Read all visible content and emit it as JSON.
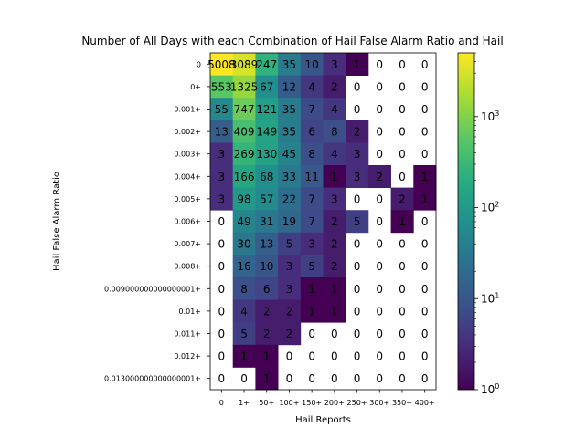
{
  "chart_data": {
    "type": "heatmap",
    "title": "Number of All Days with each Combination of Hail False Alarm Ratio and Hail",
    "xlabel": "Hail Reports",
    "ylabel": "Hail False Alarm Ratio",
    "x_categories": [
      "0",
      "1+",
      "50+",
      "100+",
      "150+",
      "200+",
      "250+",
      "300+",
      "350+",
      "400+"
    ],
    "y_categories": [
      "0",
      "0+",
      "0.001+",
      "0.002+",
      "0.003+",
      "0.004+",
      "0.005+",
      "0.006+",
      "0.007+",
      "0.008+",
      "0.009000000000000001+",
      "0.01+",
      "0.011+",
      "0.012+",
      "0.013000000000000001+"
    ],
    "values": [
      [
        5008,
        3089,
        247,
        35,
        10,
        3,
        1,
        0,
        0,
        0
      ],
      [
        553,
        1325,
        67,
        12,
        4,
        2,
        0,
        0,
        0,
        0
      ],
      [
        55,
        747,
        121,
        35,
        7,
        4,
        0,
        0,
        0,
        0
      ],
      [
        13,
        409,
        149,
        35,
        6,
        8,
        2,
        0,
        0,
        0
      ],
      [
        3,
        269,
        130,
        45,
        8,
        4,
        3,
        0,
        0,
        0
      ],
      [
        3,
        166,
        68,
        33,
        11,
        1,
        3,
        2,
        0,
        1
      ],
      [
        3,
        98,
        57,
        22,
        7,
        3,
        0,
        0,
        2,
        1
      ],
      [
        0,
        49,
        31,
        19,
        7,
        2,
        5,
        0,
        1,
        0
      ],
      [
        0,
        30,
        13,
        5,
        3,
        2,
        0,
        0,
        0,
        0
      ],
      [
        0,
        16,
        10,
        3,
        5,
        2,
        0,
        0,
        0,
        0
      ],
      [
        0,
        8,
        6,
        3,
        1,
        1,
        0,
        0,
        0,
        0
      ],
      [
        0,
        4,
        2,
        2,
        1,
        1,
        0,
        0,
        0,
        0
      ],
      [
        0,
        5,
        2,
        2,
        0,
        0,
        0,
        0,
        0,
        0
      ],
      [
        0,
        1,
        1,
        0,
        0,
        0,
        0,
        0,
        0,
        0
      ],
      [
        0,
        0,
        1,
        0,
        0,
        0,
        0,
        0,
        0,
        0
      ]
    ],
    "colorbar": {
      "scale": "log",
      "colormap": "viridis",
      "range": [
        1,
        5008
      ],
      "tick_values": [
        1,
        10,
        100,
        1000
      ],
      "tick_labels": [
        "10^0",
        "10^1",
        "10^2",
        "10^3"
      ]
    },
    "zero_cells": "white",
    "grid": false,
    "legend": "none"
  }
}
